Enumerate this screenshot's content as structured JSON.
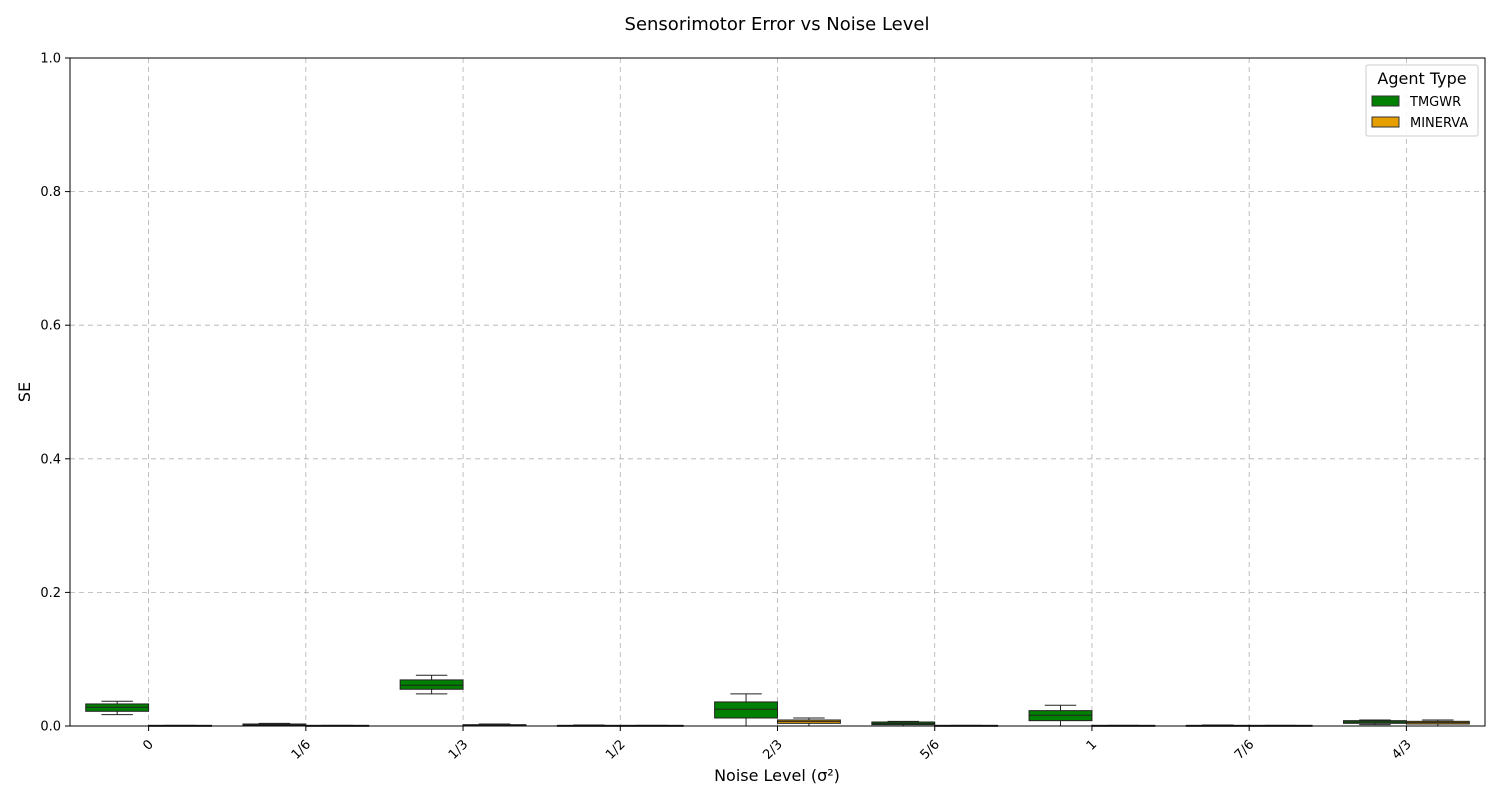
{
  "chart_data": {
    "type": "box",
    "title": "Sensorimotor Error vs Noise Level",
    "xlabel": "Noise Level (σ²)",
    "ylabel": "SE",
    "ylim": [
      0,
      1.0
    ],
    "yticks": [
      "0.0",
      "0.2",
      "0.4",
      "0.6",
      "0.8",
      "1.0"
    ],
    "ytick_values": [
      0,
      0.2,
      0.4,
      0.6,
      0.8,
      1.0
    ],
    "categories": [
      "0",
      "1/6",
      "1/3",
      "1/2",
      "2/3",
      "5/6",
      "1",
      "7/6",
      "4/3"
    ],
    "grid": true,
    "legend": {
      "title": "Agent Type",
      "position": "top-right"
    },
    "series": [
      {
        "name": "TMGWR",
        "color": "#008000",
        "boxes": [
          {
            "whislo": 0.017,
            "q1": 0.022,
            "med": 0.028,
            "q3": 0.033,
            "whishi": 0.037
          },
          {
            "whislo": 0.0,
            "q1": 0.001,
            "med": 0.002,
            "q3": 0.003,
            "whishi": 0.004
          },
          {
            "whislo": 0.048,
            "q1": 0.055,
            "med": 0.061,
            "q3": 0.069,
            "whishi": 0.076
          },
          {
            "whislo": 0.0,
            "q1": 0.0,
            "med": 0.0005,
            "q3": 0.001,
            "whishi": 0.0015
          },
          {
            "whislo": 0.0,
            "q1": 0.012,
            "med": 0.025,
            "q3": 0.036,
            "whishi": 0.048
          },
          {
            "whislo": 0.0,
            "q1": 0.002,
            "med": 0.004,
            "q3": 0.006,
            "whishi": 0.007
          },
          {
            "whislo": 0.0,
            "q1": 0.008,
            "med": 0.016,
            "q3": 0.023,
            "whishi": 0.031
          },
          {
            "whislo": 0.0,
            "q1": 0.0,
            "med": 0.0005,
            "q3": 0.001,
            "whishi": 0.0015
          },
          {
            "whislo": 0.002,
            "q1": 0.004,
            "med": 0.006,
            "q3": 0.008,
            "whishi": 0.009
          }
        ]
      },
      {
        "name": "MINERVA",
        "color": "#e69f00",
        "boxes": [
          {
            "whislo": 0.0,
            "q1": 0.0,
            "med": 0.0005,
            "q3": 0.001,
            "whishi": 0.001
          },
          {
            "whislo": 0.0,
            "q1": 0.0,
            "med": 0.0005,
            "q3": 0.001,
            "whishi": 0.001
          },
          {
            "whislo": 0.0,
            "q1": 0.001,
            "med": 0.0015,
            "q3": 0.002,
            "whishi": 0.003
          },
          {
            "whislo": 0.0,
            "q1": 0.0,
            "med": 0.0005,
            "q3": 0.001,
            "whishi": 0.001
          },
          {
            "whislo": 0.0,
            "q1": 0.004,
            "med": 0.007,
            "q3": 0.009,
            "whishi": 0.012
          },
          {
            "whislo": 0.0,
            "q1": 0.0,
            "med": 0.0005,
            "q3": 0.001,
            "whishi": 0.001
          },
          {
            "whislo": 0.0,
            "q1": 0.0,
            "med": 0.0005,
            "q3": 0.001,
            "whishi": 0.001
          },
          {
            "whislo": 0.0,
            "q1": 0.0,
            "med": 0.0005,
            "q3": 0.001,
            "whishi": 0.001
          },
          {
            "whislo": 0.0,
            "q1": 0.003,
            "med": 0.005,
            "q3": 0.007,
            "whishi": 0.009
          }
        ]
      }
    ]
  }
}
